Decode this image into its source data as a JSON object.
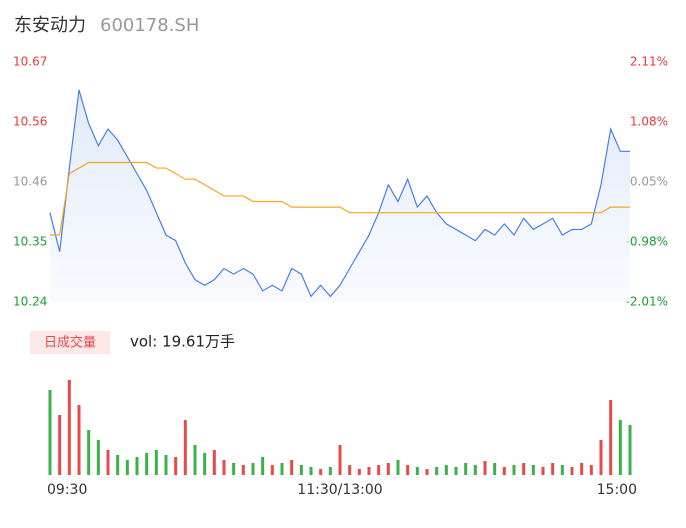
{
  "chart_data": [
    {
      "type": "line",
      "title": "东安动力",
      "subtitle": "600178.SH",
      "x": [
        0,
        4,
        8,
        12,
        16,
        20,
        24,
        28,
        32,
        36,
        40,
        44,
        48,
        52,
        56,
        60,
        64,
        68,
        72,
        76,
        80,
        84,
        88,
        92,
        96,
        100,
        104,
        108,
        112,
        116,
        120,
        124,
        128,
        132,
        136,
        140,
        144,
        148,
        152,
        156,
        160,
        164,
        168,
        172,
        176,
        180,
        184,
        188,
        192,
        196,
        200,
        204,
        208,
        212,
        216,
        220,
        224,
        228,
        232,
        236,
        240
      ],
      "xlim": [
        0,
        240
      ],
      "xticks": [
        {
          "value": 0,
          "label": "09:30"
        },
        {
          "value": 120,
          "label": "11:30/13:00"
        },
        {
          "value": 240,
          "label": "15:00"
        }
      ],
      "ylim": [
        10.24,
        10.67
      ],
      "yticks": [
        10.24,
        {
          "value": 10.3475,
          "label": "10.35"
        },
        {
          "value": 10.455,
          "label": "10.46"
        },
        {
          "value": 10.5625,
          "label": "10.56"
        },
        10.67
      ],
      "ytick_colors": [
        "#1aa035",
        "#1aa035",
        "#999999",
        "#e83a3a",
        "#e83a3a"
      ],
      "y2lim": [
        -2.01,
        2.11
      ],
      "y2ticks": [
        {
          "value": -2.01,
          "label": "-2.01%"
        },
        {
          "value": -0.98,
          "label": "-0.98%"
        },
        {
          "value": 0.05,
          "label": "0.05%"
        },
        {
          "value": 1.08,
          "label": "1.08%"
        },
        {
          "value": 2.11,
          "label": "2.11%"
        }
      ],
      "series": [
        {
          "name": "price",
          "color": "#4a7fe0",
          "values": [
            10.4,
            10.33,
            10.48,
            10.62,
            10.56,
            10.52,
            10.55,
            10.53,
            10.5,
            10.47,
            10.44,
            10.4,
            10.36,
            10.35,
            10.31,
            10.28,
            10.27,
            10.28,
            10.3,
            10.29,
            10.3,
            10.29,
            10.26,
            10.27,
            10.26,
            10.3,
            10.29,
            10.25,
            10.27,
            10.25,
            10.27,
            10.3,
            10.33,
            10.36,
            10.4,
            10.45,
            10.42,
            10.46,
            10.41,
            10.43,
            10.4,
            10.38,
            10.37,
            10.36,
            10.35,
            10.37,
            10.36,
            10.38,
            10.36,
            10.39,
            10.37,
            10.38,
            10.39,
            10.36,
            10.37,
            10.37,
            10.38,
            10.45,
            10.55,
            10.51,
            10.51
          ]
        },
        {
          "name": "average",
          "color": "#f5a623",
          "values": [
            10.36,
            10.36,
            10.47,
            10.48,
            10.49,
            10.49,
            10.49,
            10.49,
            10.49,
            10.49,
            10.49,
            10.48,
            10.48,
            10.47,
            10.46,
            10.46,
            10.45,
            10.44,
            10.43,
            10.43,
            10.43,
            10.42,
            10.42,
            10.42,
            10.42,
            10.41,
            10.41,
            10.41,
            10.41,
            10.41,
            10.41,
            10.4,
            10.4,
            10.4,
            10.4,
            10.4,
            10.4,
            10.4,
            10.4,
            10.4,
            10.4,
            10.4,
            10.4,
            10.4,
            10.4,
            10.4,
            10.4,
            10.4,
            10.4,
            10.4,
            10.4,
            10.4,
            10.4,
            10.4,
            10.4,
            10.4,
            10.4,
            10.4,
            10.41,
            10.41,
            10.41
          ]
        }
      ]
    },
    {
      "type": "bar",
      "title": "日成交量",
      "annotation": "vol: 19.61万手",
      "x": [
        0,
        4,
        8,
        12,
        16,
        20,
        24,
        28,
        32,
        36,
        40,
        44,
        48,
        52,
        56,
        60,
        64,
        68,
        72,
        76,
        80,
        84,
        88,
        92,
        96,
        100,
        104,
        108,
        112,
        116,
        120,
        124,
        128,
        132,
        136,
        140,
        144,
        148,
        152,
        156,
        160,
        164,
        168,
        172,
        176,
        180,
        184,
        188,
        192,
        196,
        200,
        204,
        208,
        212,
        216,
        220,
        224,
        228,
        232,
        236,
        240
      ],
      "xlim": [
        0,
        240
      ],
      "ylim": [
        0,
        100
      ],
      "values": [
        85,
        60,
        95,
        70,
        45,
        35,
        25,
        20,
        15,
        18,
        22,
        25,
        20,
        18,
        55,
        30,
        22,
        25,
        15,
        12,
        10,
        12,
        18,
        10,
        12,
        15,
        10,
        8,
        6,
        8,
        30,
        10,
        6,
        8,
        10,
        12,
        15,
        10,
        8,
        6,
        8,
        10,
        8,
        12,
        10,
        14,
        12,
        8,
        10,
        12,
        10,
        8,
        12,
        10,
        8,
        12,
        10,
        35,
        75,
        55,
        50
      ],
      "colors": [
        "#3cb04a",
        "#e84a4a",
        "#e84a4a",
        "#e84a4a",
        "#3cb04a",
        "#3cb04a",
        "#e84a4a",
        "#3cb04a",
        "#3cb04a",
        "#3cb04a",
        "#3cb04a",
        "#3cb04a",
        "#3cb04a",
        "#e84a4a",
        "#e84a4a",
        "#3cb04a",
        "#3cb04a",
        "#e84a4a",
        "#e84a4a",
        "#3cb04a",
        "#e84a4a",
        "#3cb04a",
        "#3cb04a",
        "#e84a4a",
        "#3cb04a",
        "#e84a4a",
        "#3cb04a",
        "#3cb04a",
        "#e84a4a",
        "#3cb04a",
        "#e84a4a",
        "#e84a4a",
        "#e84a4a",
        "#e84a4a",
        "#e84a4a",
        "#e84a4a",
        "#3cb04a",
        "#e84a4a",
        "#3cb04a",
        "#e84a4a",
        "#3cb04a",
        "#3cb04a",
        "#3cb04a",
        "#3cb04a",
        "#3cb04a",
        "#e84a4a",
        "#3cb04a",
        "#e84a4a",
        "#3cb04a",
        "#e84a4a",
        "#3cb04a",
        "#e84a4a",
        "#e84a4a",
        "#3cb04a",
        "#e84a4a",
        "#e84a4a",
        "#e84a4a",
        "#e84a4a",
        "#e84a4a",
        "#3cb04a",
        "#3cb04a"
      ]
    }
  ]
}
